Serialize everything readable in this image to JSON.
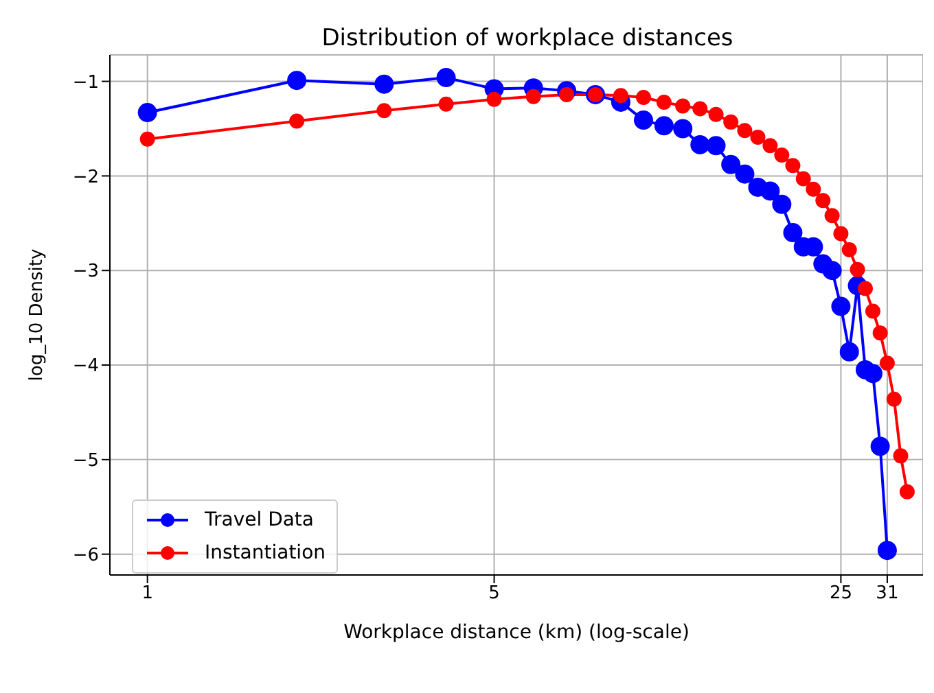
{
  "chart_data": {
    "type": "line",
    "title": "Distribution of workplace distances",
    "xlabel": "Workplace distance (km) (log-scale)",
    "ylabel": "log_10 Density",
    "log": "x",
    "grid": true,
    "legend": "bottom left",
    "marker": "circle",
    "line_style": "solid",
    "xlim": [
      0.84,
      36.6
    ],
    "xticks": [
      1,
      5,
      25,
      31
    ],
    "ylim": [
      -6.22,
      -0.72
    ],
    "yticks": [
      {
        "value": -6,
        "label": "−6"
      },
      {
        "value": -5,
        "label": "−5"
      },
      {
        "value": -4,
        "label": "−4"
      },
      {
        "value": -3,
        "label": "−3"
      },
      {
        "value": -2,
        "label": "−2"
      },
      {
        "value": -1,
        "label": "−1"
      }
    ],
    "series": [
      {
        "name": "Travel Data",
        "color": "#0000ff",
        "x": [
          1,
          2,
          3,
          4,
          5,
          6,
          7,
          8,
          9,
          10,
          11,
          12,
          13,
          14,
          15,
          16,
          17,
          18,
          19,
          20,
          21,
          22,
          23,
          24,
          25,
          26,
          27,
          28,
          29,
          30,
          31
        ],
        "values": [
          -1.33,
          -0.99,
          -1.03,
          -0.96,
          -1.08,
          -1.07,
          -1.1,
          -1.14,
          -1.22,
          -1.41,
          -1.47,
          -1.5,
          -1.67,
          -1.68,
          -1.88,
          -1.98,
          -2.12,
          -2.16,
          -2.3,
          -2.6,
          -2.75,
          -2.75,
          -2.93,
          -3.0,
          -3.38,
          -3.86,
          -3.16,
          -4.05,
          -4.09,
          -4.86,
          -5.96
        ]
      },
      {
        "name": "Instantiation",
        "color": "#ff0000",
        "x": [
          1,
          2,
          3,
          4,
          5,
          6,
          7,
          8,
          9,
          10,
          11,
          12,
          13,
          14,
          15,
          16,
          17,
          18,
          19,
          20,
          21,
          22,
          23,
          24,
          25,
          26,
          27,
          28,
          29,
          30,
          31,
          32,
          33,
          34
        ],
        "values": [
          -1.61,
          -1.42,
          -1.31,
          -1.24,
          -1.19,
          -1.16,
          -1.14,
          -1.14,
          -1.15,
          -1.17,
          -1.22,
          -1.26,
          -1.29,
          -1.35,
          -1.43,
          -1.52,
          -1.59,
          -1.68,
          -1.78,
          -1.89,
          -2.03,
          -2.14,
          -2.26,
          -2.42,
          -2.61,
          -2.78,
          -2.99,
          -3.19,
          -3.43,
          -3.66,
          -3.98,
          -4.36,
          -4.96,
          -5.34
        ]
      }
    ]
  }
}
